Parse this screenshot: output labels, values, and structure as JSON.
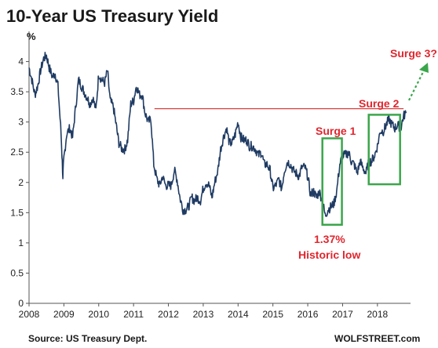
{
  "chart_data": {
    "type": "line",
    "title": "10-Year US Treasury Yield",
    "ylabel": "%",
    "xlabel": "",
    "source": "Source: US Treasury Dept.",
    "brand": "WOLFSTREET.com",
    "ylim": [
      0,
      4.5
    ],
    "xlim": [
      2008.0,
      2018.95
    ],
    "yticks": [
      "0",
      "0.5",
      "1",
      "1.5",
      "2",
      "2.5",
      "3",
      "3.5",
      "4"
    ],
    "xticks": [
      "2008",
      "2009",
      "2010",
      "2011",
      "2012",
      "2013",
      "2014",
      "2015",
      "2016",
      "2017",
      "2018"
    ],
    "grid": false,
    "legend": "none",
    "colors": {
      "line": "#1f3b63",
      "annotation": "#e0262e",
      "box": "#3aa64a",
      "arrow": "#3aa64a",
      "ref_line": "#d42a2a"
    },
    "series": [
      {
        "x": [
          2008.0,
          2008.08,
          2008.17,
          2008.25,
          2008.33,
          2008.42,
          2008.5,
          2008.58,
          2008.67,
          2008.75,
          2008.83,
          2008.92,
          2008.97,
          2009.0,
          2009.08,
          2009.17,
          2009.25,
          2009.33,
          2009.42,
          2009.5,
          2009.58,
          2009.67,
          2009.75,
          2009.83,
          2009.92,
          2010.0,
          2010.08,
          2010.17,
          2010.25,
          2010.33,
          2010.42,
          2010.5,
          2010.58,
          2010.67,
          2010.75,
          2010.83,
          2010.92,
          2011.0,
          2011.08,
          2011.17,
          2011.25,
          2011.33,
          2011.42,
          2011.5,
          2011.58,
          2011.67,
          2011.75,
          2011.83,
          2011.92,
          2012.0,
          2012.08,
          2012.17,
          2012.25,
          2012.33,
          2012.42,
          2012.5,
          2012.58,
          2012.67,
          2012.75,
          2012.83,
          2012.92,
          2013.0,
          2013.08,
          2013.17,
          2013.25,
          2013.33,
          2013.42,
          2013.5,
          2013.58,
          2013.67,
          2013.75,
          2013.83,
          2013.92,
          2014.0,
          2014.08,
          2014.17,
          2014.25,
          2014.33,
          2014.42,
          2014.5,
          2014.58,
          2014.67,
          2014.75,
          2014.83,
          2014.92,
          2015.0,
          2015.08,
          2015.17,
          2015.25,
          2015.33,
          2015.42,
          2015.5,
          2015.58,
          2015.67,
          2015.75,
          2015.83,
          2015.92,
          2016.0,
          2016.08,
          2016.17,
          2016.25,
          2016.33,
          2016.42,
          2016.5,
          2016.58,
          2016.67,
          2016.75,
          2016.83,
          2016.92,
          2017.0,
          2017.08,
          2017.17,
          2017.25,
          2017.33,
          2017.42,
          2017.5,
          2017.58,
          2017.67,
          2017.75,
          2017.83,
          2017.92,
          2018.0,
          2018.08,
          2018.17,
          2018.25,
          2018.33,
          2018.42,
          2018.5,
          2018.58,
          2018.67,
          2018.75,
          2018.83
        ],
        "values": [
          3.9,
          3.7,
          3.45,
          3.6,
          3.85,
          4.05,
          4.1,
          3.9,
          3.75,
          3.8,
          3.6,
          2.8,
          2.1,
          2.4,
          2.8,
          2.9,
          2.75,
          3.2,
          3.7,
          3.6,
          3.5,
          3.4,
          3.3,
          3.4,
          3.2,
          3.8,
          3.7,
          3.65,
          3.85,
          3.35,
          3.25,
          2.95,
          2.65,
          2.55,
          2.55,
          2.7,
          3.3,
          3.35,
          3.6,
          3.45,
          3.45,
          3.15,
          3.0,
          3.05,
          2.3,
          2.05,
          1.95,
          2.1,
          1.95,
          1.95,
          1.95,
          2.2,
          2.05,
          1.75,
          1.55,
          1.55,
          1.6,
          1.75,
          1.7,
          1.75,
          1.7,
          1.9,
          2.0,
          1.95,
          1.75,
          2.0,
          2.2,
          2.55,
          2.75,
          2.9,
          2.65,
          2.65,
          2.8,
          3.0,
          2.75,
          2.7,
          2.7,
          2.6,
          2.6,
          2.55,
          2.45,
          2.5,
          2.3,
          2.3,
          2.2,
          1.9,
          1.95,
          2.05,
          1.9,
          2.2,
          2.35,
          2.3,
          2.2,
          2.15,
          2.1,
          2.25,
          2.25,
          2.1,
          1.8,
          1.85,
          1.75,
          1.85,
          1.7,
          1.45,
          1.55,
          1.6,
          1.65,
          1.85,
          2.3,
          2.45,
          2.45,
          2.5,
          2.35,
          2.3,
          2.15,
          2.35,
          2.25,
          2.15,
          2.35,
          2.35,
          2.45,
          2.6,
          2.85,
          2.85,
          2.95,
          3.05,
          2.95,
          2.9,
          2.95,
          2.9,
          3.1,
          3.15
        ]
      }
    ],
    "annotations": {
      "surge1": "Surge 1",
      "surge2": "Surge 2",
      "surge3": "Surge 3?",
      "low_value": "1.37%",
      "low_text": "Historic low"
    },
    "ref_level": 3.22
  }
}
